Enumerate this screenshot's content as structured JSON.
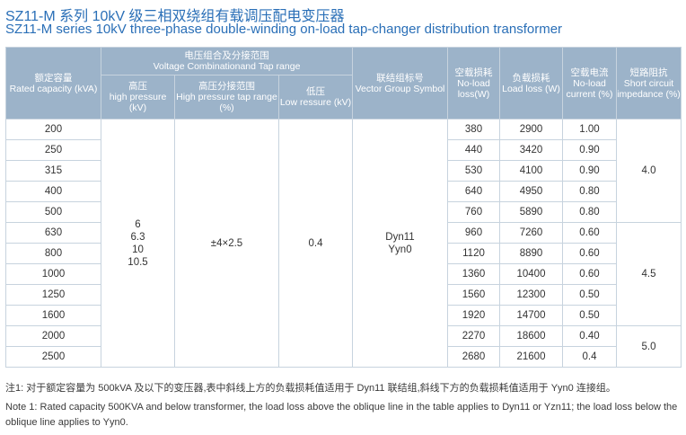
{
  "title_cn": "SZ11-M 系列 10kV 级三相双绕组有载调压配电变压器",
  "title_en": "SZ11-M series 10kV three-phase double-winding on-load tap-changer distribution transformer",
  "headers": {
    "rated_capacity_cn": "额定容量",
    "rated_capacity_en": "Rated capacity (kVA)",
    "voltage_group_cn": "电压组合及分接范围",
    "voltage_group_en": "Voltage Combinationand Tap range",
    "high_pressure_cn": "高压",
    "high_pressure_en": "high pressure (kV)",
    "hp_tap_cn": "高压分接范围",
    "hp_tap_en": "High pressure tap range (%)",
    "low_pressure_cn": "低压",
    "low_pressure_en": "Low ressure (kV)",
    "vector_cn": "联结组标号",
    "vector_en": "Vector Group Symbol",
    "noload_loss_cn": "空载损耗",
    "noload_loss_en": "No-load loss(W)",
    "load_loss_cn": "负载损耗",
    "load_loss_en": "Load loss (W)",
    "noload_current_cn": "空载电流",
    "noload_current_en": "No-load current (%)",
    "impedance_cn": "短路阻抗",
    "impedance_en": "Short circuit impedance (%)"
  },
  "merged": {
    "high_pressure": [
      "6",
      "6.3",
      "10",
      "10.5"
    ],
    "tap_range": "±4×2.5",
    "low_pressure": "0.4",
    "vector": [
      "Dyn11",
      "Yyn0"
    ],
    "impedance_1": "4.0",
    "impedance_2": "4.5",
    "impedance_3": "5.0"
  },
  "rows": [
    {
      "capacity": "200",
      "noload": "380",
      "load": "2900",
      "current": "1.00"
    },
    {
      "capacity": "250",
      "noload": "440",
      "load": "3420",
      "current": "0.90"
    },
    {
      "capacity": "315",
      "noload": "530",
      "load": "4100",
      "current": "0.90"
    },
    {
      "capacity": "400",
      "noload": "640",
      "load": "4950",
      "current": "0.80"
    },
    {
      "capacity": "500",
      "noload": "760",
      "load": "5890",
      "current": "0.80"
    },
    {
      "capacity": "630",
      "noload": "960",
      "load": "7260",
      "current": "0.60"
    },
    {
      "capacity": "800",
      "noload": "1120",
      "load": "8890",
      "current": "0.60"
    },
    {
      "capacity": "1000",
      "noload": "1360",
      "load": "10400",
      "current": "0.60"
    },
    {
      "capacity": "1250",
      "noload": "1560",
      "load": "12300",
      "current": "0.50"
    },
    {
      "capacity": "1600",
      "noload": "1920",
      "load": "14700",
      "current": "0.50"
    },
    {
      "capacity": "2000",
      "noload": "2270",
      "load": "18600",
      "current": "0.40"
    },
    {
      "capacity": "2500",
      "noload": "2680",
      "load": "21600",
      "current": "0.4"
    }
  ],
  "notes": {
    "cn": "注1: 对于额定容量为 500kVA 及以下的变压器,表中斜线上方的负载损耗值适用于 Dyn11 联结组,斜线下方的负载损耗值适用于 Yyn0 连接组。",
    "en": "Note 1: Rated capacity 500KVA and below transformer, the load loss above the oblique line in the table applies to Dyn11 or Yzn11; the load loss  below the oblique line applies to Yyn0."
  }
}
